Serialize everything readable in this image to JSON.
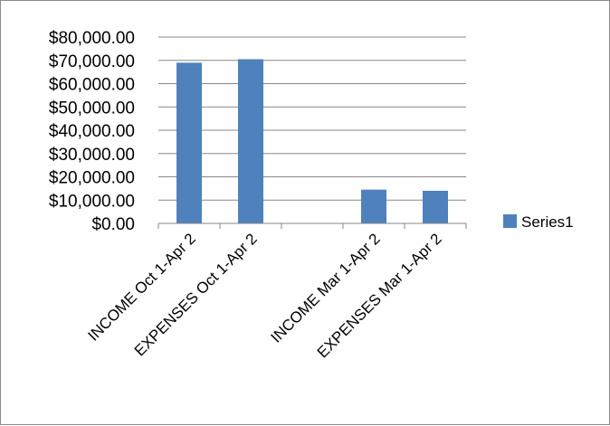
{
  "chart_data": {
    "type": "bar",
    "categories": [
      "INCOME Oct 1-Apr 2",
      "EXPENSES Oct 1-Apr 2",
      "",
      "INCOME Mar 1-Apr 2",
      "EXPENSES Mar 1-Apr 2"
    ],
    "series": [
      {
        "name": "Series1",
        "values": [
          69000,
          70500,
          0,
          14500,
          14000
        ],
        "color": "#4f81bd"
      }
    ],
    "ylim": [
      0,
      80000
    ],
    "yticks": [
      0,
      10000,
      20000,
      30000,
      40000,
      50000,
      60000,
      70000,
      80000
    ],
    "ytick_labels": [
      "$0.00",
      "$10,000.00",
      "$20,000.00",
      "$30,000.00",
      "$40,000.00",
      "$50,000.00",
      "$60,000.00",
      "$70,000.00",
      "$80,000.00"
    ],
    "grid": true,
    "gridline_color": "#878787",
    "legend_position": "right",
    "title": "",
    "xlabel": "",
    "ylabel": ""
  }
}
